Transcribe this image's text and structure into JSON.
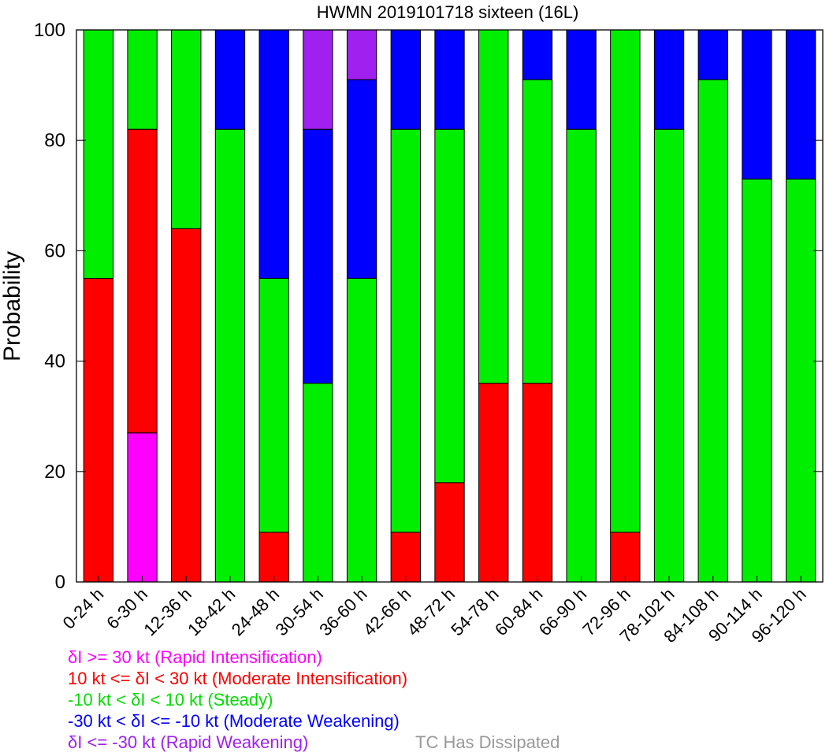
{
  "chart_data": {
    "type": "bar",
    "stacked": true,
    "title": "HWMN 2019101718 sixteen (16L)",
    "xlabel": "",
    "ylabel": "Probability",
    "ylim": [
      0,
      100
    ],
    "yticks": [
      0,
      20,
      40,
      60,
      80,
      100
    ],
    "grid": false,
    "categories": [
      "0-24 h",
      "6-30 h",
      "12-36 h",
      "18-42 h",
      "24-48 h",
      "30-54 h",
      "36-60 h",
      "42-66 h",
      "48-72 h",
      "54-78 h",
      "60-84 h",
      "66-90 h",
      "72-96 h",
      "78-102 h",
      "84-108 h",
      "90-114 h",
      "96-120 h"
    ],
    "series": [
      {
        "color": "#ff00ff",
        "values": [
          0,
          27,
          0,
          0,
          0,
          0,
          0,
          0,
          0,
          0,
          0,
          0,
          0,
          0,
          0,
          0,
          0
        ]
      },
      {
        "color": "#ff0000",
        "values": [
          55,
          55,
          64,
          0,
          9,
          0,
          0,
          9,
          18,
          36,
          36,
          0,
          9,
          0,
          0,
          0,
          0
        ]
      },
      {
        "color": "#00ee00",
        "values": [
          45,
          18,
          36,
          82,
          46,
          36,
          55,
          73,
          64,
          64,
          55,
          82,
          91,
          82,
          91,
          73,
          73
        ]
      },
      {
        "color": "#0000ff",
        "values": [
          0,
          0,
          0,
          18,
          45,
          46,
          36,
          18,
          18,
          0,
          9,
          18,
          0,
          18,
          9,
          27,
          27
        ]
      },
      {
        "color": "#a020f0",
        "values": [
          0,
          0,
          0,
          0,
          0,
          18,
          9,
          0,
          0,
          0,
          0,
          0,
          0,
          0,
          0,
          0,
          0
        ]
      }
    ],
    "legend": {
      "placement": "bottom-left",
      "entries": [
        {
          "label": "δI >= 30 kt (Rapid Intensification)",
          "color": "#ff00ff"
        },
        {
          "label": "10 kt <= δI < 30 kt (Moderate Intensification)",
          "color": "#ff0000"
        },
        {
          "label": "-10 kt < δI < 10 kt (Steady)",
          "color": "#00dd00"
        },
        {
          "label": "-30 kt < δI <= -10 kt (Moderate Weakening)",
          "color": "#0000ff"
        },
        {
          "label": "δI <= -30 kt (Rapid Weakening)",
          "color": "#a020f0"
        }
      ],
      "dissipated_label": "TC Has Dissipated",
      "dissipated_color": "#999999"
    }
  }
}
